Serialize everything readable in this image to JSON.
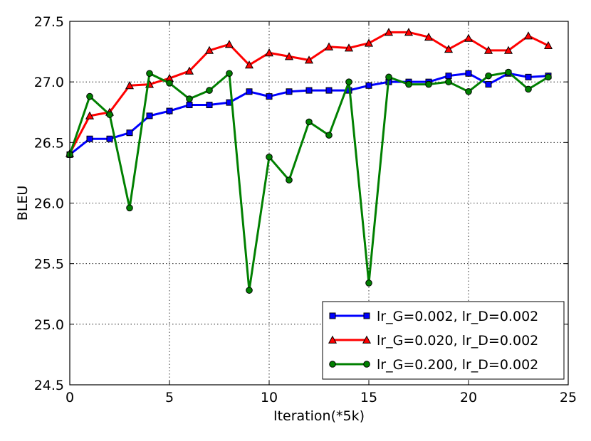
{
  "chart_data": {
    "type": "line",
    "xlabel": "Iteration(*5k)",
    "ylabel": "BLEU",
    "xlim": [
      0,
      25
    ],
    "ylim": [
      24.5,
      27.5
    ],
    "xticks": [
      "0",
      "5",
      "10",
      "15",
      "20",
      "25"
    ],
    "yticks": [
      "24.5",
      "25.0",
      "25.5",
      "26.0",
      "26.5",
      "27.0",
      "27.5"
    ],
    "grid": true,
    "legend_position": "lower-right",
    "x": [
      0,
      1,
      2,
      3,
      4,
      5,
      6,
      7,
      8,
      9,
      10,
      11,
      12,
      13,
      14,
      15,
      16,
      17,
      18,
      19,
      20,
      21,
      22,
      23,
      24
    ],
    "series": [
      {
        "name": "lr_G=0.002, lr_D=0.002",
        "color": "#0000ff",
        "marker": "square",
        "values": [
          26.4,
          26.53,
          26.53,
          26.58,
          26.72,
          26.76,
          26.81,
          26.81,
          26.83,
          26.92,
          26.88,
          26.92,
          26.93,
          26.93,
          26.93,
          26.97,
          27.0,
          27.0,
          27.0,
          27.05,
          27.07,
          26.98,
          27.07,
          27.04,
          27.05
        ]
      },
      {
        "name": "lr_G=0.020, lr_D=0.002",
        "color": "#ff0000",
        "marker": "triangle",
        "values": [
          26.41,
          26.72,
          26.75,
          26.97,
          26.98,
          27.03,
          27.09,
          27.26,
          27.31,
          27.14,
          27.24,
          27.21,
          27.18,
          27.29,
          27.28,
          27.32,
          27.41,
          27.41,
          27.37,
          27.27,
          27.36,
          27.26,
          27.26,
          27.38,
          27.3
        ]
      },
      {
        "name": "lr_G=0.200, lr_D=0.002",
        "color": "#008000",
        "marker": "circle",
        "values": [
          26.4,
          26.88,
          26.73,
          25.96,
          27.07,
          26.99,
          26.86,
          26.93,
          27.07,
          25.28,
          26.38,
          26.19,
          26.67,
          26.56,
          27.0,
          25.34,
          27.04,
          26.98,
          26.98,
          27.0,
          26.92,
          27.05,
          27.08,
          26.94,
          27.04
        ]
      }
    ]
  }
}
